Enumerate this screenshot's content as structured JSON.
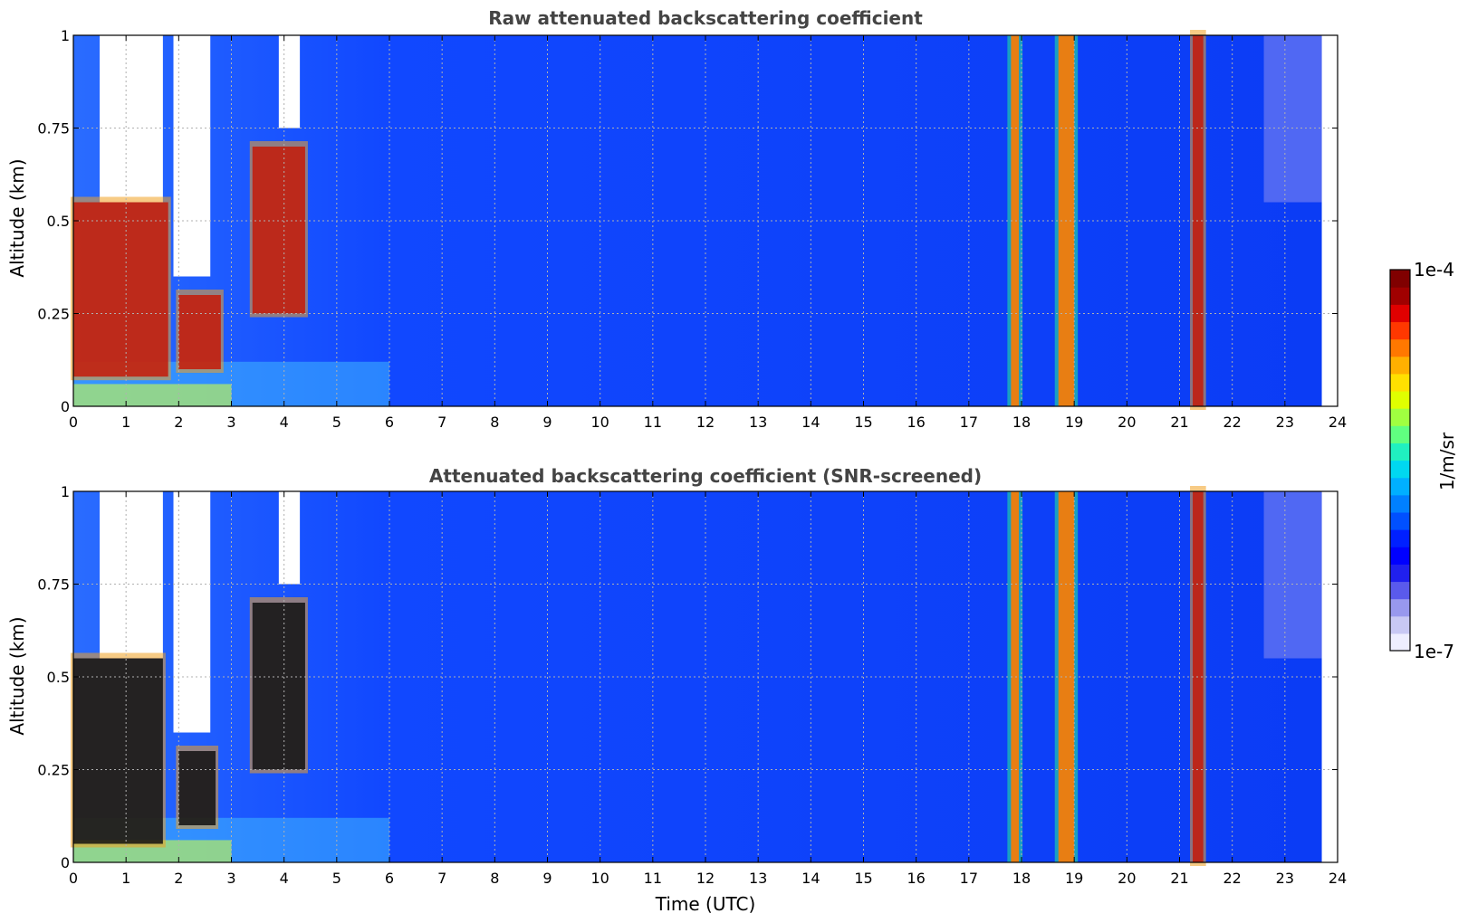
{
  "chart_data": [
    {
      "type": "heatmap",
      "title": "Raw attenuated backscattering coefficient",
      "xlabel": "",
      "ylabel": "Altitude (km)",
      "xlim": [
        0,
        24
      ],
      "ylim": [
        0,
        1
      ],
      "x_ticks": [
        "0",
        "1",
        "2",
        "3",
        "4",
        "5",
        "6",
        "7",
        "8",
        "9",
        "10",
        "11",
        "12",
        "13",
        "14",
        "15",
        "16",
        "17",
        "18",
        "19",
        "20",
        "21",
        "22",
        "23",
        "24"
      ],
      "y_ticks": [
        "0",
        "0.25",
        "0.5",
        "0.75",
        "1"
      ],
      "grid": true,
      "features": [
        {
          "x_start": 0.0,
          "x_end": 1.8,
          "y_bottom": 0.08,
          "y_top": 0.55,
          "level": "high"
        },
        {
          "x_start": 2.0,
          "x_end": 2.8,
          "y_bottom": 0.1,
          "y_top": 0.3,
          "level": "high"
        },
        {
          "x_start": 3.4,
          "x_end": 4.4,
          "y_bottom": 0.25,
          "y_top": 0.7,
          "level": "high"
        },
        {
          "x_start": 17.8,
          "x_end": 17.95,
          "y_bottom": 0.0,
          "y_top": 1.0,
          "level": "medium-high"
        },
        {
          "x_start": 18.7,
          "x_end": 19.0,
          "y_bottom": 0.0,
          "y_top": 1.0,
          "level": "medium-high"
        },
        {
          "x_start": 21.25,
          "x_end": 21.45,
          "y_bottom": 0.0,
          "y_top": 1.0,
          "level": "high"
        }
      ]
    },
    {
      "type": "heatmap",
      "title": "Attenuated backscattering coefficient (SNR-screened)",
      "xlabel": "Time (UTC)",
      "ylabel": "Altitude (km)",
      "xlim": [
        0,
        24
      ],
      "ylim": [
        0,
        1
      ],
      "x_ticks": [
        "0",
        "1",
        "2",
        "3",
        "4",
        "5",
        "6",
        "7",
        "8",
        "9",
        "10",
        "11",
        "12",
        "13",
        "14",
        "15",
        "16",
        "17",
        "18",
        "19",
        "20",
        "21",
        "22",
        "23",
        "24"
      ],
      "y_ticks": [
        "0",
        "0.25",
        "0.5",
        "0.75",
        "1"
      ],
      "grid": true,
      "features": [
        {
          "x_start": 0.0,
          "x_end": 1.7,
          "y_bottom": 0.05,
          "y_top": 0.55,
          "level": "saturated"
        },
        {
          "x_start": 2.0,
          "x_end": 2.7,
          "y_bottom": 0.1,
          "y_top": 0.3,
          "level": "saturated"
        },
        {
          "x_start": 3.4,
          "x_end": 4.4,
          "y_bottom": 0.25,
          "y_top": 0.7,
          "level": "saturated"
        },
        {
          "x_start": 17.8,
          "x_end": 17.95,
          "y_bottom": 0.0,
          "y_top": 1.0,
          "level": "medium-high"
        },
        {
          "x_start": 18.7,
          "x_end": 19.0,
          "y_bottom": 0.0,
          "y_top": 1.0,
          "level": "medium-high"
        },
        {
          "x_start": 21.25,
          "x_end": 21.45,
          "y_bottom": 0.0,
          "y_top": 1.0,
          "level": "high"
        }
      ]
    }
  ],
  "colorbar": {
    "label": "1/m/sr",
    "max_label": "1e-4",
    "min_label": "1e-7",
    "colors": [
      "#eeeeff",
      "#c8c8f4",
      "#9898ee",
      "#5a5aec",
      "#2020ee",
      "#0000ff",
      "#0020ff",
      "#0050ff",
      "#0080ff",
      "#00b0ff",
      "#00d8f0",
      "#20f0c0",
      "#60ff80",
      "#a0ff40",
      "#e0ff00",
      "#ffe000",
      "#ffb000",
      "#ff7800",
      "#ff3800",
      "#e00000",
      "#a00000",
      "#800000"
    ]
  }
}
